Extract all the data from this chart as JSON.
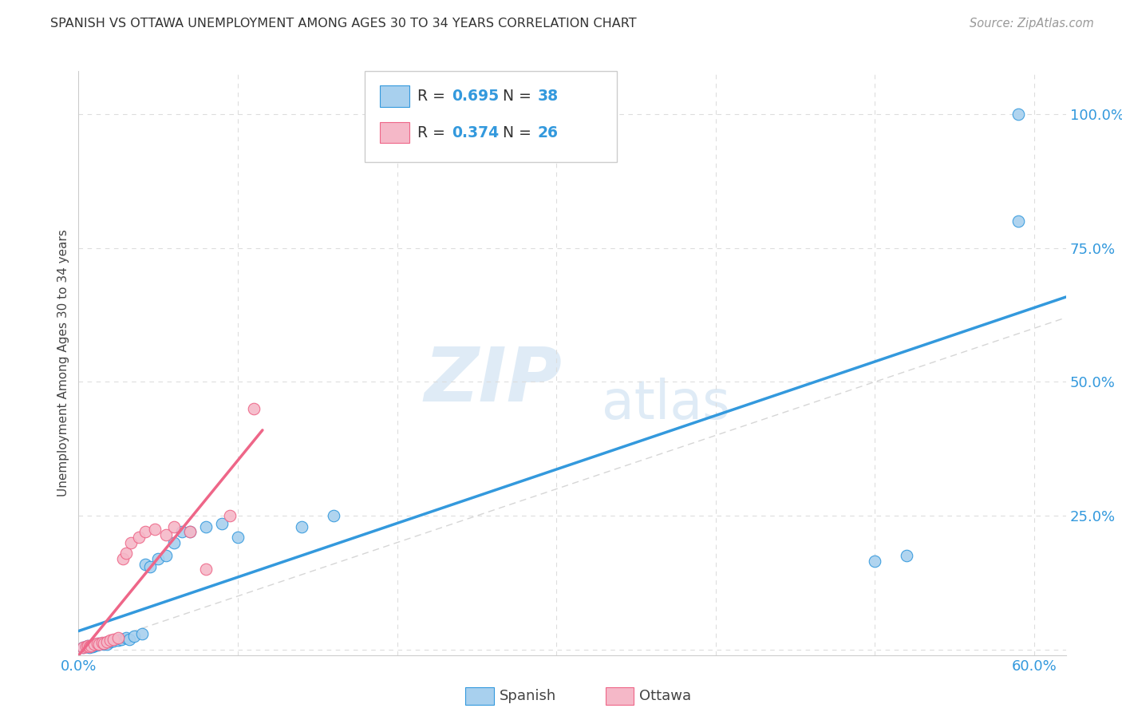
{
  "title": "SPANISH VS OTTAWA UNEMPLOYMENT AMONG AGES 30 TO 34 YEARS CORRELATION CHART",
  "source": "Source: ZipAtlas.com",
  "ylabel": "Unemployment Among Ages 30 to 34 years",
  "xlim": [
    0,
    0.62
  ],
  "ylim": [
    -0.01,
    1.08
  ],
  "watermark_zip": "ZIP",
  "watermark_atlas": "atlas",
  "spanish_R": "0.695",
  "spanish_N": "38",
  "ottawa_R": "0.374",
  "ottawa_N": "26",
  "spanish_color": "#A8D0EE",
  "ottawa_color": "#F5B8C8",
  "regression_spanish_color": "#3399DD",
  "regression_ottawa_color": "#EE6688",
  "diagonal_color": "#CCCCCC",
  "grid_color": "#DDDDDD",
  "spanish_x": [
    0.003,
    0.005,
    0.006,
    0.007,
    0.008,
    0.009,
    0.01,
    0.011,
    0.012,
    0.013,
    0.015,
    0.016,
    0.017,
    0.018,
    0.02,
    0.022,
    0.025,
    0.027,
    0.03,
    0.032,
    0.035,
    0.04,
    0.042,
    0.045,
    0.05,
    0.055,
    0.06,
    0.065,
    0.07,
    0.08,
    0.09,
    0.1,
    0.14,
    0.16,
    0.5,
    0.52,
    0.59,
    0.59
  ],
  "spanish_y": [
    0.005,
    0.006,
    0.007,
    0.005,
    0.008,
    0.006,
    0.008,
    0.01,
    0.009,
    0.012,
    0.012,
    0.01,
    0.013,
    0.011,
    0.015,
    0.016,
    0.018,
    0.02,
    0.022,
    0.02,
    0.025,
    0.03,
    0.16,
    0.155,
    0.17,
    0.175,
    0.2,
    0.22,
    0.22,
    0.23,
    0.235,
    0.21,
    0.23,
    0.25,
    0.165,
    0.175,
    0.8,
    1.0
  ],
  "ottawa_x": [
    0.003,
    0.005,
    0.006,
    0.007,
    0.008,
    0.01,
    0.012,
    0.013,
    0.015,
    0.016,
    0.018,
    0.02,
    0.022,
    0.025,
    0.028,
    0.03,
    0.033,
    0.038,
    0.042,
    0.048,
    0.055,
    0.06,
    0.07,
    0.08,
    0.095,
    0.11
  ],
  "ottawa_y": [
    0.005,
    0.006,
    0.007,
    0.006,
    0.008,
    0.01,
    0.012,
    0.011,
    0.013,
    0.012,
    0.015,
    0.018,
    0.02,
    0.022,
    0.17,
    0.18,
    0.2,
    0.21,
    0.22,
    0.225,
    0.215,
    0.23,
    0.22,
    0.15,
    0.25,
    0.45
  ]
}
